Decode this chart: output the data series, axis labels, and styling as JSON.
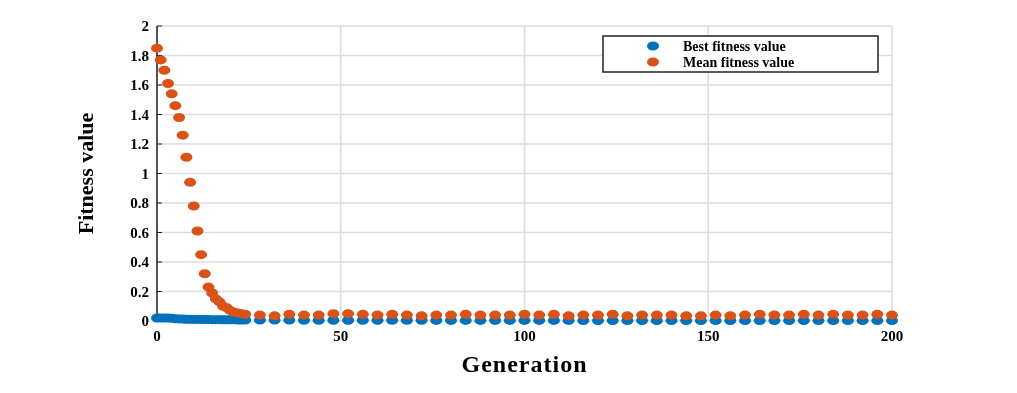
{
  "chart_data": {
    "type": "scatter",
    "xlabel": "Generation",
    "ylabel": "Fitness value",
    "xlim": [
      0,
      200
    ],
    "ylim": [
      0,
      2
    ],
    "xticks": [
      0,
      50,
      100,
      150,
      200
    ],
    "yticks": [
      0,
      0.2,
      0.4,
      0.6,
      0.8,
      1,
      1.2,
      1.4,
      1.6,
      1.8,
      2
    ],
    "grid": true,
    "legend": "top right",
    "marker": "circle",
    "x": [
      0,
      1,
      2,
      3,
      4,
      5,
      6,
      7,
      8,
      9,
      10,
      11,
      12,
      13,
      14,
      15,
      16,
      17,
      18,
      19,
      20,
      21,
      22,
      23,
      24,
      28,
      32,
      36,
      40,
      44,
      48,
      52,
      56,
      60,
      64,
      68,
      72,
      76,
      80,
      84,
      88,
      92,
      96,
      100,
      104,
      108,
      112,
      116,
      120,
      124,
      128,
      132,
      136,
      140,
      144,
      148,
      152,
      156,
      160,
      164,
      168,
      172,
      176,
      180,
      184,
      188,
      192,
      196,
      200
    ],
    "series": [
      {
        "name": "Best fitness value",
        "color": "#0072bd",
        "values": [
          0.02,
          0.02,
          0.02,
          0.02,
          0.018,
          0.015,
          0.014,
          0.013,
          0.012,
          0.012,
          0.011,
          0.011,
          0.01,
          0.01,
          0.01,
          0.009,
          0.009,
          0.009,
          0.008,
          0.008,
          0.008,
          0.008,
          0.007,
          0.007,
          0.007,
          0.006,
          0.006,
          0.006,
          0.005,
          0.005,
          0.005,
          0.005,
          0.005,
          0.005,
          0.005,
          0.005,
          0.005,
          0.004,
          0.004,
          0.004,
          0.004,
          0.004,
          0.004,
          0.004,
          0.004,
          0.004,
          0.004,
          0.003,
          0.003,
          0.003,
          0.003,
          0.003,
          0.003,
          0.003,
          0.003,
          0.003,
          0.003,
          0.003,
          0.003,
          0.003,
          0.003,
          0.003,
          0.003,
          0.003,
          0.003,
          0.003,
          0.003,
          0.003,
          0.003
        ]
      },
      {
        "name": "Mean fitness value",
        "color": "#d95319",
        "values": [
          1.85,
          1.77,
          1.7,
          1.61,
          1.54,
          1.46,
          1.38,
          1.26,
          1.11,
          0.94,
          0.78,
          0.61,
          0.45,
          0.32,
          0.23,
          0.19,
          0.15,
          0.13,
          0.1,
          0.09,
          0.07,
          0.06,
          0.055,
          0.05,
          0.045,
          0.04,
          0.035,
          0.045,
          0.04,
          0.04,
          0.05,
          0.05,
          0.045,
          0.04,
          0.045,
          0.04,
          0.035,
          0.04,
          0.04,
          0.045,
          0.04,
          0.04,
          0.04,
          0.045,
          0.04,
          0.045,
          0.035,
          0.04,
          0.04,
          0.045,
          0.035,
          0.04,
          0.04,
          0.04,
          0.035,
          0.035,
          0.04,
          0.035,
          0.04,
          0.045,
          0.04,
          0.04,
          0.045,
          0.04,
          0.045,
          0.04,
          0.04,
          0.045,
          0.04
        ]
      }
    ]
  }
}
